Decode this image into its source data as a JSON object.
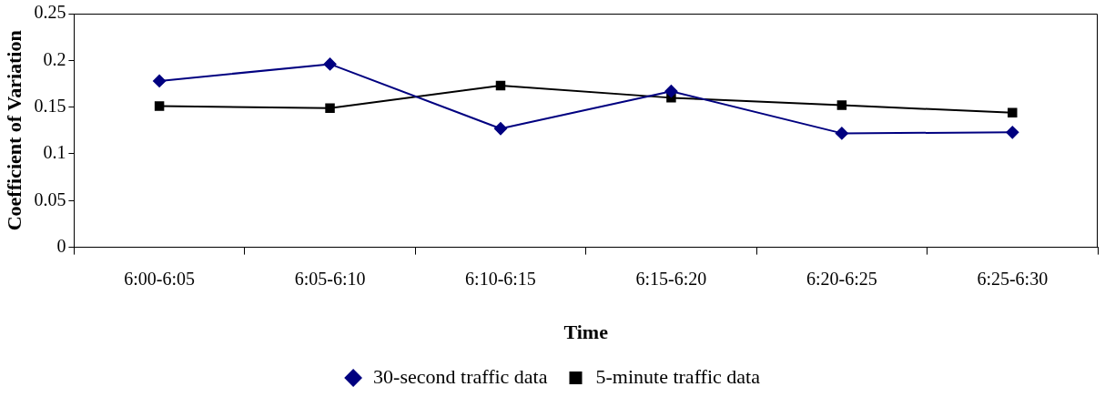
{
  "chart_data": {
    "type": "line",
    "xlabel": "Time",
    "ylabel": "Coefficient of Variation",
    "categories": [
      "6:00-6:05",
      "6:05-6:10",
      "6:10-6:15",
      "6:15-6:20",
      "6:20-6:25",
      "6:25-6:30"
    ],
    "series": [
      {
        "name": "30-second traffic data",
        "color": "#000080",
        "marker": "diamond",
        "values": [
          0.178,
          0.196,
          0.127,
          0.167,
          0.122,
          0.123
        ]
      },
      {
        "name": "5-minute traffic data",
        "color": "#000000",
        "marker": "square",
        "values": [
          0.151,
          0.149,
          0.173,
          0.16,
          0.152,
          0.144
        ]
      }
    ],
    "ylim": [
      0,
      0.25
    ],
    "yticks": [
      0,
      0.05,
      0.1,
      0.15,
      0.2,
      0.25
    ],
    "grid": false,
    "legend": "bottom"
  }
}
